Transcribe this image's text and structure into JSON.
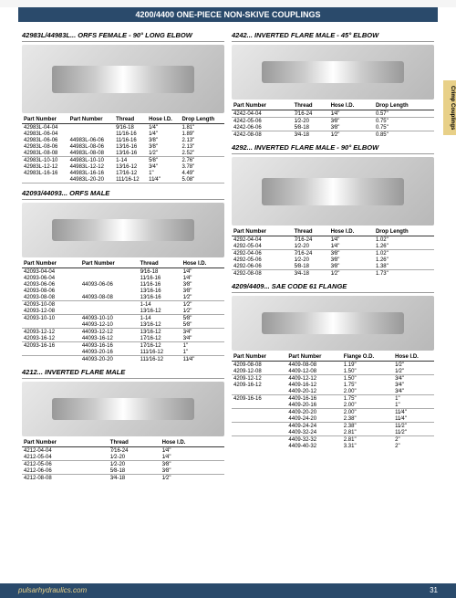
{
  "header": "4200/4400 ONE-PIECE NON-SKIVE COUPLINGS",
  "sideTab": "Crimp Couplings",
  "footer": {
    "url": "pulsarhydraulics.com",
    "page": "31"
  },
  "sections": [
    {
      "title": "42983L/44983L... ORFS FEMALE - 90° LONG ELBOW",
      "col": "left",
      "imgClass": "tall",
      "headers": [
        "Part Number",
        "Part Number",
        "Thread",
        "Hose I.D.",
        "Drop Length"
      ],
      "rows": [
        [
          "42983L-04-04",
          "",
          "9⁄16-18",
          "1⁄4\"",
          "1.81\""
        ],
        [
          "42983L-06-04",
          "",
          "11⁄16-16",
          "1⁄4\"",
          "1.89\""
        ],
        [
          "42983L-06-06",
          "44983L-06-06",
          "11⁄16-16",
          "3⁄8\"",
          "2.13\""
        ],
        [
          "42983L-08-06",
          "44983L-08-06",
          "13⁄16-16",
          "3⁄8\"",
          "2.13\""
        ],
        [
          "42983L-08-08",
          "44983L-08-08",
          "13⁄16-16",
          "1⁄2\"",
          "2.52\""
        ],
        [
          "42983L-10-10",
          "44983L-10-10",
          "1-14",
          "5⁄8\"",
          "2.76\""
        ],
        [
          "42983L-12-12",
          "44983L-12-12",
          "13⁄16-12",
          "3⁄4\"",
          "3.78\""
        ],
        [
          "42983L-16-16",
          "44983L-16-16",
          "17⁄16-12",
          "1\"",
          "4.49\""
        ],
        [
          "",
          "44983L-20-20",
          "111⁄16-12",
          "11⁄4\"",
          "5.08\""
        ]
      ],
      "seps": [
        4,
        8
      ]
    },
    {
      "title": "42093/44093... ORFS MALE",
      "col": "left",
      "headers": [
        "Part Number",
        "Part Number",
        "Thread",
        "Hose I.D."
      ],
      "rows": [
        [
          "42093-04-04",
          "",
          "9⁄16-18",
          "1⁄4\""
        ],
        [
          "42093-06-04",
          "",
          "11⁄16-16",
          "1⁄4\""
        ],
        [
          "42093-06-06",
          "44093-06-06",
          "11⁄16-16",
          "3⁄8\""
        ],
        [
          "42093-08-06",
          "",
          "13⁄16-16",
          "3⁄8\""
        ],
        [
          "42093-08-08",
          "44093-08-08",
          "13⁄16-16",
          "1⁄2\""
        ],
        [
          "42093-10-08",
          "",
          "1-14",
          "1⁄2\""
        ],
        [
          "42093-12-08",
          "",
          "13⁄16-12",
          "1⁄2\""
        ],
        [
          "42093-10-10",
          "44093-10-10",
          "1-14",
          "5⁄8\""
        ],
        [
          "",
          "44093-12-10",
          "13⁄16-12",
          "5⁄8\""
        ],
        [
          "42093-12-12",
          "44093-12-12",
          "13⁄16-12",
          "3⁄4\""
        ],
        [
          "42093-16-12",
          "44093-16-12",
          "17⁄16-12",
          "3⁄4\""
        ],
        [
          "42093-16-16",
          "44093-16-16",
          "17⁄16-12",
          "1\""
        ],
        [
          "",
          "44093-20-16",
          "111⁄16-12",
          "1\""
        ],
        [
          "",
          "44093-20-20",
          "111⁄16-12",
          "11⁄4\""
        ]
      ],
      "seps": [
        4,
        6,
        8,
        10,
        12
      ]
    },
    {
      "title": "4212... INVERTED FLARE MALE",
      "col": "left",
      "headers": [
        "Part Number",
        "Thread",
        "Hose I.D."
      ],
      "rows": [
        [
          "4212-04-04",
          "7⁄16-24",
          "1⁄4\""
        ],
        [
          "4212-05-04",
          "1⁄2-20",
          "1⁄4\""
        ],
        [
          "4212-05-06",
          "1⁄2-20",
          "3⁄8\""
        ],
        [
          "4212-06-06",
          "5⁄8-18",
          "3⁄8\""
        ],
        [
          "4212-08-08",
          "3⁄4-18",
          "1⁄2\""
        ]
      ],
      "seps": [
        1,
        3
      ]
    },
    {
      "title": "4242... INVERTED FLARE MALE - 45° ELBOW",
      "col": "right",
      "headers": [
        "Part Number",
        "Thread",
        "Hose I.D.",
        "Drop Length"
      ],
      "rows": [
        [
          "4242-04-04",
          "7⁄16-24",
          "1⁄4\"",
          "0.57\""
        ],
        [
          "4242-05-06",
          "1⁄2-20",
          "3⁄8\"",
          "0.75\""
        ],
        [
          "4242-06-06",
          "5⁄8-18",
          "3⁄8\"",
          "0.75\""
        ],
        [
          "4242-08-08",
          "3⁄4-18",
          "1⁄2\"",
          "0.85\""
        ]
      ],
      "seps": [
        0,
        2
      ]
    },
    {
      "title": "4292... INVERTED FLARE MALE - 90° ELBOW",
      "col": "right",
      "imgClass": "tall",
      "headers": [
        "Part Number",
        "Thread",
        "Hose I.D.",
        "Drop Length"
      ],
      "rows": [
        [
          "4292-04-04",
          "7⁄16-24",
          "1⁄4\"",
          "1.02\""
        ],
        [
          "4292-05-04",
          "1⁄2-20",
          "1⁄4\"",
          "1.26\""
        ],
        [
          "4292-04-06",
          "7⁄16-24",
          "3⁄8\"",
          "1.02\""
        ],
        [
          "4292-05-06",
          "1⁄2-20",
          "3⁄8\"",
          "1.26\""
        ],
        [
          "4292-06-06",
          "5⁄8-18",
          "3⁄8\"",
          "1.38\""
        ],
        [
          "4292-08-08",
          "3⁄4-18",
          "1⁄2\"",
          "1.73\""
        ]
      ],
      "seps": [
        1,
        4
      ]
    },
    {
      "title": "4209/4409... SAE CODE 61 FLANGE",
      "col": "right",
      "headers": [
        "Part Number",
        "Part Number",
        "Flange O.D.",
        "Hose I.D."
      ],
      "rows": [
        [
          "4209-08-08",
          "4409-08-08",
          "1.19\"",
          "1⁄2\""
        ],
        [
          "4209-12-08",
          "4409-12-08",
          "1.50\"",
          "1⁄2\""
        ],
        [
          "4209-12-12",
          "4409-12-12",
          "1.50\"",
          "3⁄4\""
        ],
        [
          "4209-16-12",
          "4409-16-12",
          "1.75\"",
          "3⁄4\""
        ],
        [
          "",
          "4409-20-12",
          "2.00\"",
          "3⁄4\""
        ],
        [
          "4209-16-16",
          "4409-16-16",
          "1.75\"",
          "1\""
        ],
        [
          "",
          "4409-20-16",
          "2.00\"",
          "1\""
        ],
        [
          "",
          "4409-20-20",
          "2.00\"",
          "11⁄4\""
        ],
        [
          "",
          "4409-24-20",
          "2.38\"",
          "11⁄4\""
        ],
        [
          "",
          "4409-24-24",
          "2.38\"",
          "11⁄2\""
        ],
        [
          "",
          "4409-32-24",
          "2.81\"",
          "11⁄2\""
        ],
        [
          "",
          "4409-32-32",
          "2.81\"",
          "2\""
        ],
        [
          "",
          "4409-40-32",
          "3.31\"",
          "2\""
        ]
      ],
      "seps": [
        1,
        4,
        6,
        8,
        10
      ]
    }
  ]
}
